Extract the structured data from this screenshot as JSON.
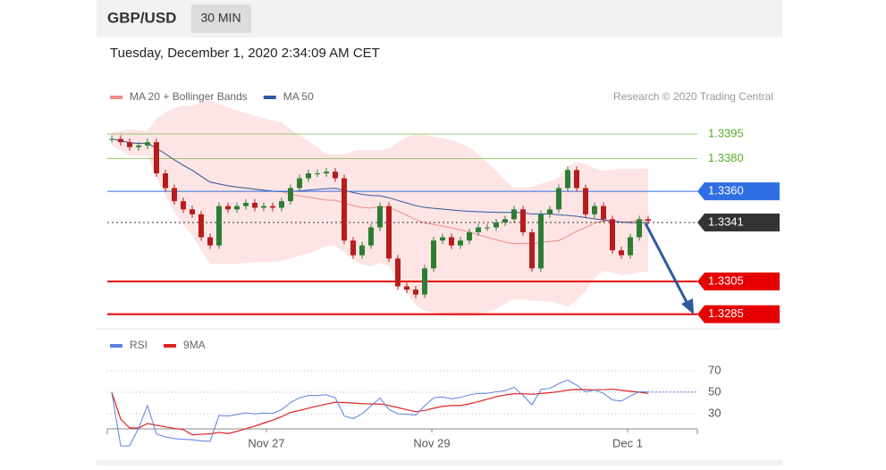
{
  "header": {
    "symbol": "GBP/USD",
    "timeframe": "30 MIN"
  },
  "timestamp": "Tuesday, December 1, 2020 2:34:09 AM CET",
  "credit": "Research © 2020 Trading Central",
  "chart_data": [
    {
      "type": "candlestick",
      "legend": [
        {
          "name": "MA 20 + Bollinger Bands",
          "color": "#f08a8a"
        },
        {
          "name": "MA 50",
          "color": "#2f5aa0"
        }
      ],
      "series": [
        {
          "name": "GBP/USD",
          "values": [
            1.3392,
            1.339,
            1.3387,
            1.3388,
            1.339,
            1.3371,
            1.3362,
            1.3354,
            1.3349,
            1.3346,
            1.3332,
            1.3327,
            1.3351,
            1.3349,
            1.3351,
            1.3353,
            1.335,
            1.3351,
            1.335,
            1.3354,
            1.3362,
            1.3368,
            1.3371,
            1.3371,
            1.3372,
            1.3368,
            1.333,
            1.3321,
            1.3327,
            1.3338,
            1.3351,
            1.3319,
            1.3302,
            1.33,
            1.3297,
            1.3313,
            1.333,
            1.3332,
            1.3327,
            1.333,
            1.3335,
            1.3338,
            1.3338,
            1.3341,
            1.3343,
            1.3349,
            1.3335,
            1.3313,
            1.3346,
            1.3349,
            1.3362,
            1.3373,
            1.3362,
            1.3346,
            1.3351,
            1.3343,
            1.3324,
            1.3321,
            1.3332,
            1.3343,
            1.3342
          ]
        }
      ],
      "up_color": "#2e7d32",
      "down_color": "#b71c1c",
      "ylim": [
        1.3281,
        1.3401
      ],
      "xlim": [
        -0.5,
        65.5
      ],
      "levels": [
        {
          "value": 1.3395,
          "label": "1.3395",
          "color": "#5aac2a",
          "boxed": false,
          "dashed": false
        },
        {
          "value": 1.338,
          "label": "1.3380",
          "color": "#5aac2a",
          "boxed": false,
          "dashed": false
        },
        {
          "value": 1.336,
          "label": "1.3360",
          "color": "#2f6fe4",
          "boxed": true,
          "dashed": false
        },
        {
          "value": 1.3341,
          "label": "1.3341",
          "color": "#333333",
          "boxed": true,
          "dashed": true
        },
        {
          "value": 1.3305,
          "label": "1.3305",
          "color": "#e60000",
          "boxed": true,
          "dashed": false
        },
        {
          "value": 1.3285,
          "label": "1.3285",
          "color": "#e60000",
          "boxed": true,
          "dashed": false
        }
      ]
    },
    {
      "type": "line",
      "legend": [
        {
          "name": "RSI",
          "color": "#5b7fe0"
        },
        {
          "name": "9MA",
          "color": "#e02020"
        }
      ],
      "ylim": [
        20,
        80
      ],
      "yticks": [
        30,
        50,
        70
      ],
      "xticks": [
        {
          "value": 17.3,
          "label": "Nov 27"
        },
        {
          "value": 35.8,
          "label": "Nov 29"
        },
        {
          "value": 57.7,
          "label": "Dec 1"
        }
      ]
    }
  ]
}
